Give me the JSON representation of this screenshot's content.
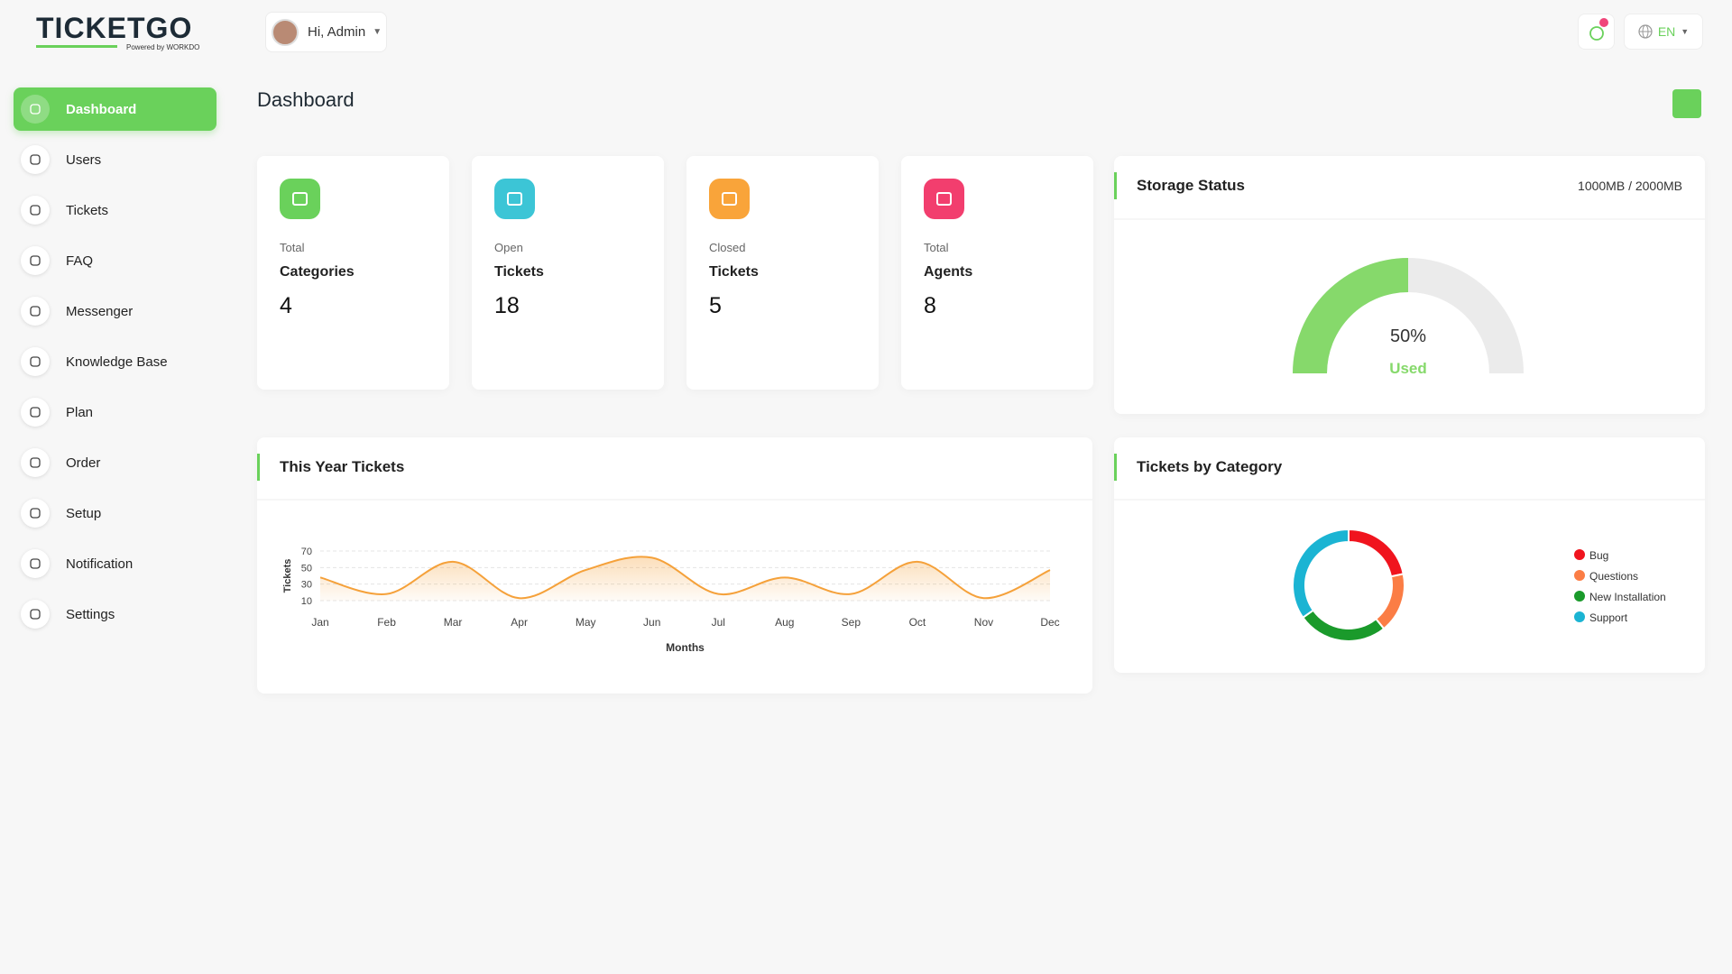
{
  "brand": {
    "name": "TICKETGO",
    "tagline": "Powered by WORKDO"
  },
  "header": {
    "greeting": "Hi, Admin",
    "language": "EN"
  },
  "sidebar": {
    "items": [
      "Dashboard",
      "Users",
      "Tickets",
      "FAQ",
      "Messenger",
      "Knowledge Base",
      "Plan",
      "Order",
      "Setup",
      "Notification",
      "Settings"
    ],
    "active": 0
  },
  "page": {
    "title": "Dashboard"
  },
  "stats": [
    {
      "caption": "Total",
      "label": "Categories",
      "value": 4,
      "color": "#6ad15b"
    },
    {
      "caption": "Open",
      "label": "Tickets",
      "value": 18,
      "color": "#3cc5d6"
    },
    {
      "caption": "Closed",
      "label": "Tickets",
      "value": 5,
      "color": "#f9a43a"
    },
    {
      "caption": "Total",
      "label": "Agents",
      "value": 8,
      "color": "#f23e6e"
    }
  ],
  "chart_data": [
    {
      "type": "gauge",
      "title": "Storage Status",
      "subtitle": "1000MB / 2000MB",
      "values": [
        50
      ],
      "value_labels": [
        "50%"
      ],
      "label": "Used",
      "ylim": [
        0,
        100
      ],
      "color": "#86d96b",
      "track_color": "#ebebeb"
    },
    {
      "type": "line",
      "title": "This Year Tickets",
      "xlabel": "Months",
      "ylabel": "Tickets",
      "categories": [
        "Jan",
        "Feb",
        "Mar",
        "Apr",
        "May",
        "Jun",
        "Jul",
        "Aug",
        "Sep",
        "Oct",
        "Nov",
        "Dec"
      ],
      "values": [
        38,
        18,
        57,
        13,
        47,
        62,
        18,
        38,
        18,
        57,
        13,
        47
      ],
      "ylim": [
        10,
        70
      ],
      "yticks": [
        10,
        30,
        50,
        70
      ],
      "grid": true,
      "color": "#f5a13a"
    },
    {
      "type": "donut",
      "title": "Tickets by Category",
      "legend": "right",
      "categories": [
        "Bug",
        "Questions",
        "New Installation",
        "Support"
      ],
      "values": [
        5,
        4,
        6,
        8
      ],
      "colors": [
        "#f0141e",
        "#fb7d45",
        "#1a9a2b",
        "#1bb4d3"
      ]
    }
  ]
}
